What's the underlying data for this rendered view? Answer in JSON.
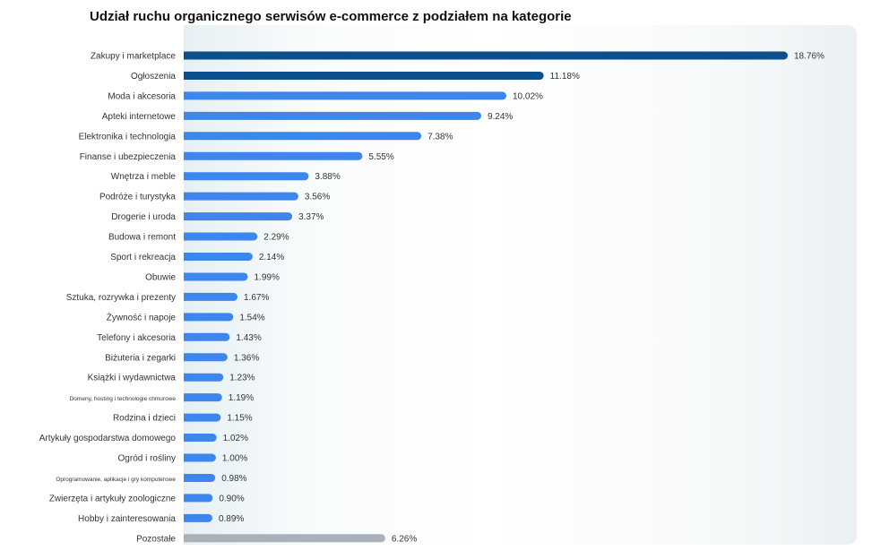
{
  "chart_data": {
    "type": "bar",
    "orientation": "horizontal",
    "title": "Udział ruchu organicznego serwisów e-commerce z podziałem na kategorie",
    "categories": [
      "Zakupy i marketplace",
      "Ogłoszenia",
      "Moda i akcesoria",
      "Apteki internetowe",
      "Elektronika i technologia",
      "Finanse i ubezpieczenia",
      "Wnętrza i meble",
      "Podróże i turystyka",
      "Drogerie i uroda",
      "Budowa i remont",
      "Sport i rekreacja",
      "Obuwie",
      "Sztuka, rozrywka i prezenty",
      "Żywność i napoje",
      "Telefony i akcesoria",
      "Biżuteria i zegarki",
      "Książki i wydawnictwa",
      "Domeny, hosting i technologie chmurowe",
      "Rodzina i dzieci",
      "Artykuły gospodarstwa domowego",
      "Ogród i rośliny",
      "Oprogramowanie, aplikacje i gry komputerowe",
      "Zwierzęta i artykuły zoologiczne",
      "Hobby i zainteresowania",
      "Pozostałe"
    ],
    "values": [
      18.76,
      11.18,
      10.02,
      9.24,
      7.38,
      5.55,
      3.88,
      3.56,
      3.37,
      2.29,
      2.14,
      1.99,
      1.67,
      1.54,
      1.43,
      1.36,
      1.23,
      1.19,
      1.15,
      1.02,
      1.0,
      0.98,
      0.9,
      0.89,
      6.26
    ],
    "value_labels": [
      "18.76%",
      "11.18%",
      "10.02%",
      "9.24%",
      "7.38%",
      "5.55%",
      "3.88%",
      "3.56%",
      "3.37%",
      "2.29%",
      "2.14%",
      "1.99%",
      "1.67%",
      "1.54%",
      "1.43%",
      "1.36%",
      "1.23%",
      "1.19%",
      "1.15%",
      "1.02%",
      "1.00%",
      "0.98%",
      "0.90%",
      "0.89%",
      "6.26%"
    ],
    "xlim": [
      0,
      18.76
    ],
    "grid": false,
    "colors": {
      "highlight": "#0b4f8c",
      "default": "#3d86ee",
      "other": "#a9b1bb"
    },
    "highlight_categories": [
      "Zakupy i marketplace",
      "Ogłoszenia"
    ],
    "other_categories": [
      "Pozostałe"
    ]
  }
}
